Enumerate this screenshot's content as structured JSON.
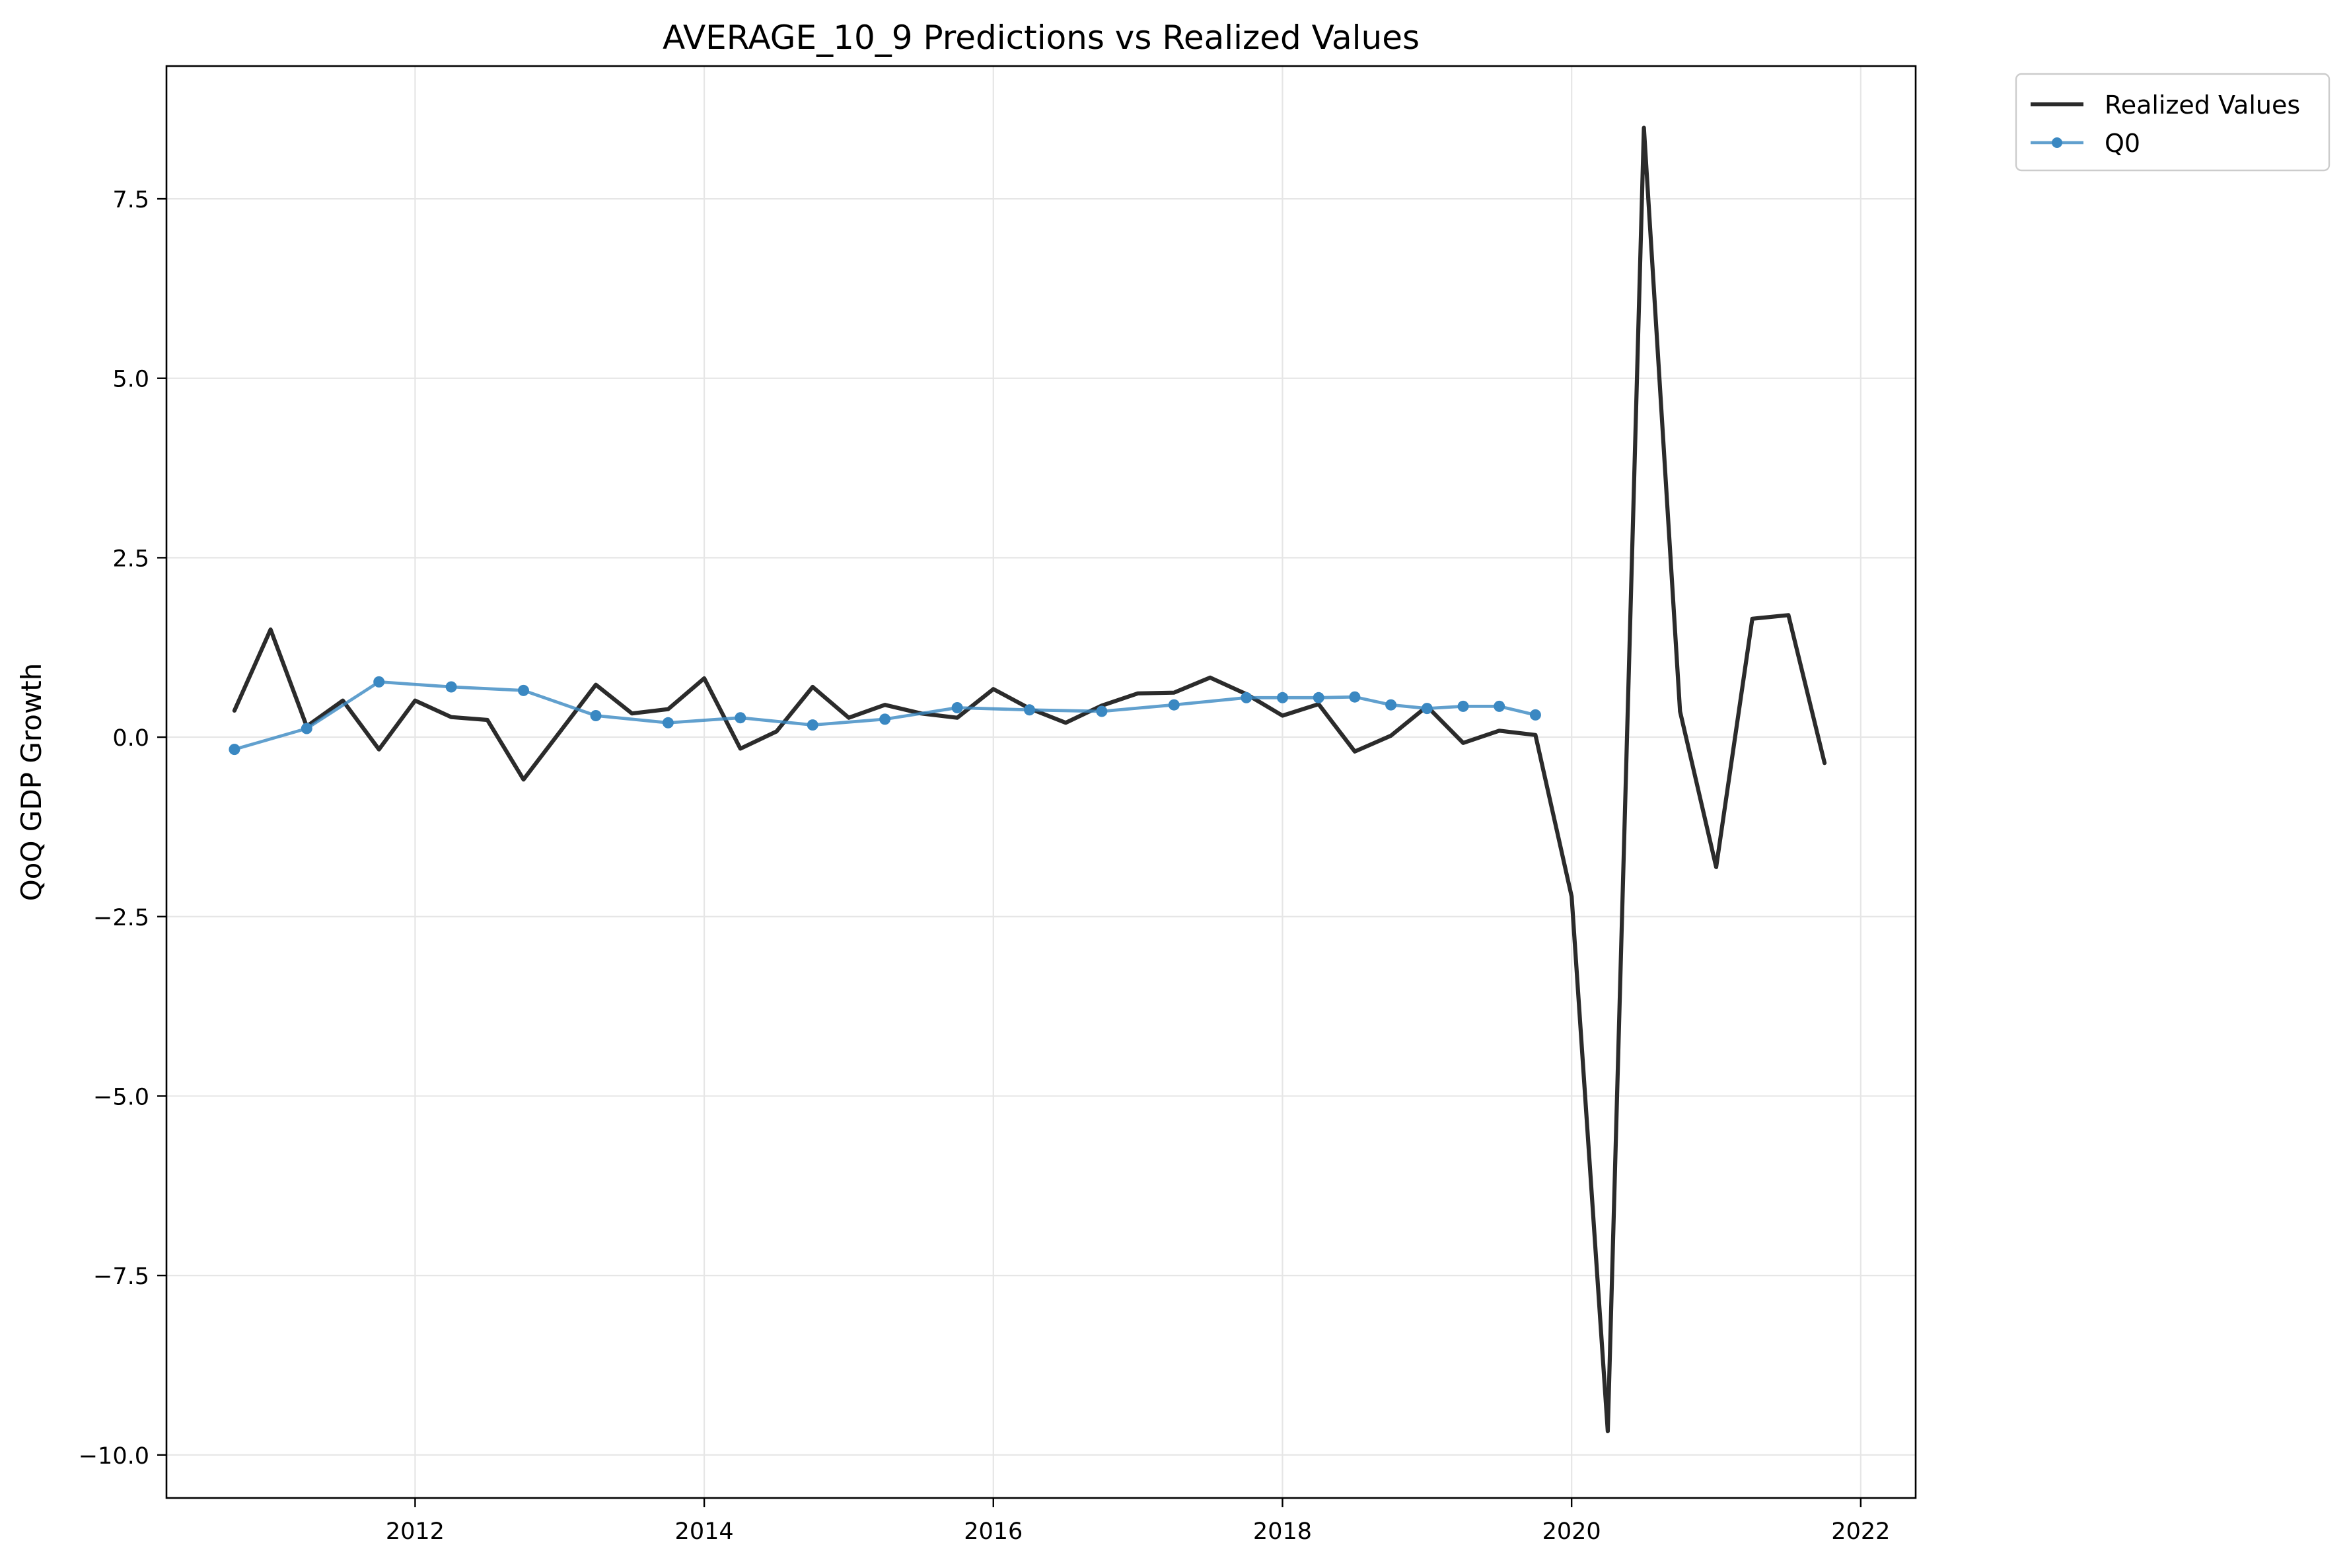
{
  "chart_data": {
    "type": "line",
    "title": "AVERAGE_10_9 Predictions vs Realized Values",
    "xlabel": "",
    "ylabel": "QoQ GDP Growth",
    "xlim": [
      2010.28,
      2022.38
    ],
    "ylim": [
      -10.6,
      9.35
    ],
    "grid": true,
    "legend_position": "outside-top-right",
    "x_ticks": [
      2012,
      2014,
      2016,
      2018,
      2020,
      2022
    ],
    "x_tick_labels": [
      "2012",
      "2014",
      "2016",
      "2018",
      "2020",
      "2022"
    ],
    "y_ticks": [
      -10.0,
      -7.5,
      -5.0,
      -2.5,
      0.0,
      2.5,
      5.0,
      7.5
    ],
    "y_tick_labels": [
      "−10.0",
      "−7.5",
      "−5.0",
      "−2.5",
      "0.0",
      "2.5",
      "5.0",
      "7.5"
    ],
    "series": [
      {
        "name": "Realized Values",
        "color": "#2b2b2b",
        "marker": "none",
        "x": [
          "2010-10",
          "2011-01",
          "2011-04",
          "2011-07",
          "2011-10",
          "2012-01",
          "2012-04",
          "2012-07",
          "2012-10",
          "2013-01",
          "2013-04",
          "2013-07",
          "2013-10",
          "2014-01",
          "2014-04",
          "2014-07",
          "2014-10",
          "2015-01",
          "2015-04",
          "2015-07",
          "2015-10",
          "2016-01",
          "2016-04",
          "2016-07",
          "2016-10",
          "2017-01",
          "2017-04",
          "2017-07",
          "2017-10",
          "2018-01",
          "2018-04",
          "2018-07",
          "2018-10",
          "2019-01",
          "2019-04",
          "2019-07",
          "2019-10",
          "2020-01",
          "2020-04",
          "2020-07",
          "2020-10",
          "2021-01",
          "2021-04",
          "2021-07",
          "2021-10"
        ],
        "y": [
          0.37,
          1.5,
          0.15,
          0.51,
          -0.17,
          0.51,
          0.28,
          0.24,
          -0.59,
          0.07,
          0.73,
          0.33,
          0.39,
          0.82,
          -0.16,
          0.08,
          0.7,
          0.27,
          0.45,
          0.33,
          0.27,
          0.67,
          0.4,
          0.2,
          0.44,
          0.61,
          0.62,
          0.83,
          0.6,
          0.3,
          0.46,
          -0.2,
          0.02,
          0.43,
          -0.08,
          0.09,
          0.03,
          -2.22,
          -9.67,
          8.49,
          0.36,
          -1.81,
          1.65,
          1.7,
          -0.36
        ]
      },
      {
        "name": "Q0",
        "color": "#3a88c2",
        "marker": "circle",
        "x": [
          "2010-10",
          "2011-04",
          "2011-10",
          "2012-04",
          "2012-10",
          "2013-04",
          "2013-10",
          "2014-04",
          "2014-10",
          "2015-04",
          "2015-10",
          "2016-04",
          "2016-10",
          "2017-04",
          "2017-10",
          "2018-01",
          "2018-04",
          "2018-07",
          "2018-10",
          "2019-01",
          "2019-04",
          "2019-07",
          "2019-10"
        ],
        "y": [
          -0.17,
          0.12,
          0.77,
          0.7,
          0.65,
          0.3,
          0.2,
          0.27,
          0.17,
          0.25,
          0.41,
          0.38,
          0.36,
          0.45,
          0.55,
          0.55,
          0.55,
          0.56,
          0.45,
          0.4,
          0.43,
          0.43,
          0.31
        ]
      }
    ]
  }
}
